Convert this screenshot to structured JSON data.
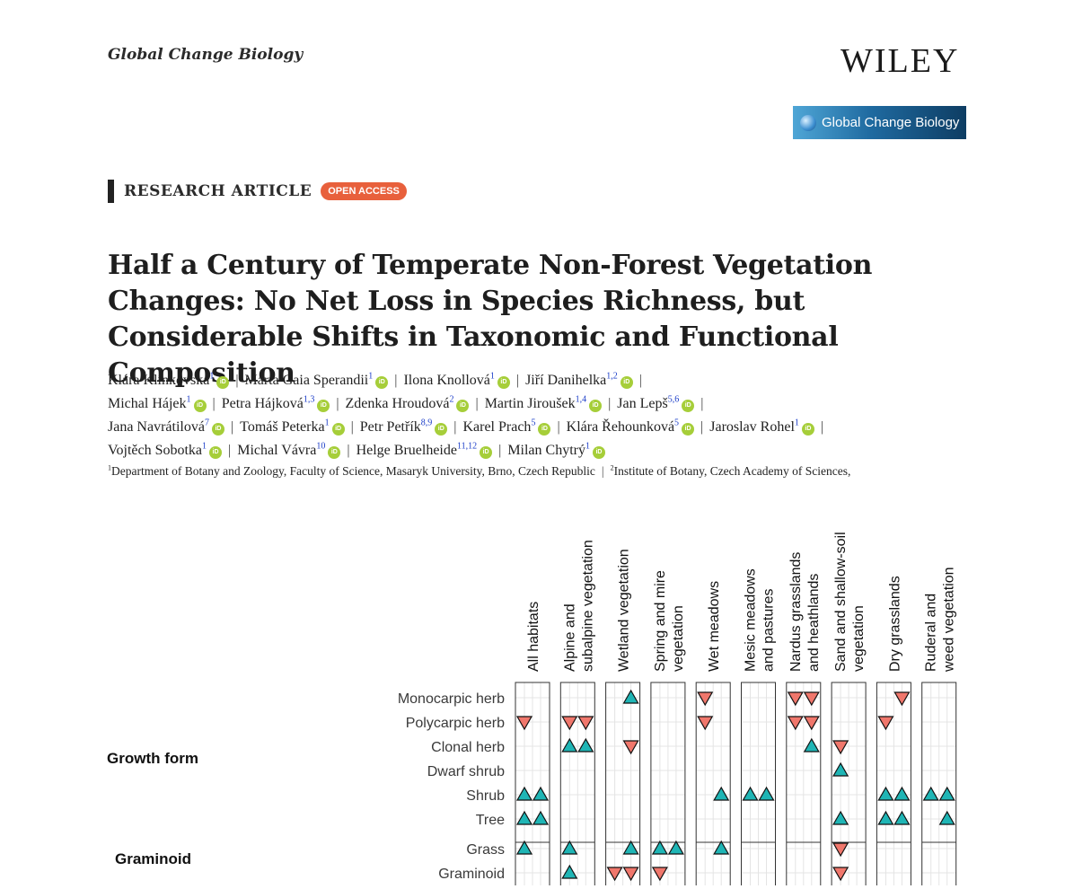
{
  "header": {
    "journal_name": "Global Change Biology",
    "publisher": "WILEY",
    "journal_badge": "Global Change Biology"
  },
  "article": {
    "type": "RESEARCH ARTICLE",
    "access": "OPEN ACCESS",
    "title": "Half a Century of Temperate Non-Forest Vegetation Changes: No Net Loss in Species Richness, but Considerable Shifts in Taxonomic and Functional Composition",
    "orcid_label": "iD",
    "authors": [
      {
        "name": "Klára Klinkovská",
        "aff": "1"
      },
      {
        "name": "Marta Gaia Sperandii",
        "aff": "1"
      },
      {
        "name": "Ilona Knollová",
        "aff": "1"
      },
      {
        "name": "Jiří Danihelka",
        "aff": "1,2"
      },
      {
        "name": "Michal Hájek",
        "aff": "1"
      },
      {
        "name": "Petra Hájková",
        "aff": "1,3"
      },
      {
        "name": "Zdenka Hroudová",
        "aff": "2"
      },
      {
        "name": "Martin Jiroušek",
        "aff": "1,4"
      },
      {
        "name": "Jan Lepš",
        "aff": "5,6"
      },
      {
        "name": "Jana Navrátilová",
        "aff": "7"
      },
      {
        "name": "Tomáš Peterka",
        "aff": "1"
      },
      {
        "name": "Petr Petřík",
        "aff": "8,9"
      },
      {
        "name": "Karel Prach",
        "aff": "5"
      },
      {
        "name": "Klára Řehounková",
        "aff": "5"
      },
      {
        "name": "Jaroslav Rohel",
        "aff": "1"
      },
      {
        "name": "Vojtěch Sobotka",
        "aff": "1"
      },
      {
        "name": "Michal Vávra",
        "aff": "10"
      },
      {
        "name": "Helge Bruelheide",
        "aff": "11,12"
      },
      {
        "name": "Milan Chytrý",
        "aff": "1"
      }
    ],
    "affiliations": [
      {
        "num": "1",
        "text": "Department of Botany and Zoology, Faculty of Science, Masaryk University, Brno, Czech Republic"
      },
      {
        "num": "2",
        "text": "Institute of Botany, Czech Academy of Sciences,"
      }
    ]
  },
  "colors": {
    "increase": "#1fb5b5",
    "decrease": "#f0776c",
    "panel_border": "#333333",
    "grid": "#e4e4e4"
  },
  "chart_data": {
    "type": "table",
    "symbols": {
      "up": "increase",
      "down": "decrease"
    },
    "columns": [
      "All habitats",
      "Alpine and\nsubalpine vegetation",
      "Wetland vegetation",
      "Spring and mire\nvegetation",
      "Wet meadows",
      "Mesic meadows\nand pastures",
      "Nardus grasslands\nand heathlands",
      "Sand and shallow-soil\nvegetation",
      "Dry grasslands",
      "Ruderal and\nweed vegetation"
    ],
    "groups": [
      {
        "label": "Growth form",
        "rows": [
          {
            "label": "Monocarpic herb",
            "cells": [
              null,
              null,
              "up",
              null,
              "down",
              null,
              "down",
              null,
              "down",
              null
            ]
          },
          {
            "label": "Polycarpic herb",
            "cells": [
              "down",
              "down",
              null,
              null,
              "down",
              null,
              "down",
              null,
              "down",
              null
            ]
          },
          {
            "label": "Clonal herb",
            "cells": [
              null,
              "up",
              "down",
              null,
              null,
              null,
              "up",
              "down",
              null,
              null
            ]
          },
          {
            "label": "Dwarf shrub",
            "cells": [
              null,
              null,
              null,
              null,
              null,
              null,
              null,
              "up",
              null,
              null
            ]
          },
          {
            "label": "Shrub",
            "cells": [
              "up",
              null,
              null,
              null,
              "up",
              "up",
              null,
              null,
              "up",
              "up"
            ]
          },
          {
            "label": "Tree",
            "cells": [
              "up",
              null,
              null,
              null,
              null,
              null,
              null,
              "up",
              "up",
              "up"
            ]
          }
        ]
      },
      {
        "label": "Graminoid",
        "rows": [
          {
            "label": "Grass",
            "cells": [
              "up",
              "up",
              "up",
              "up",
              "up",
              null,
              null,
              "down",
              null,
              null
            ]
          },
          {
            "label": "Graminoid",
            "cells": [
              null,
              "up",
              "down",
              "down",
              null,
              null,
              null,
              "down",
              null,
              null
            ]
          }
        ]
      }
    ],
    "symbol_counts": [
      [
        [
          0,
          0
        ],
        [
          0,
          0
        ],
        [
          1,
          0
        ],
        [
          0,
          0
        ],
        [
          0,
          1
        ],
        [
          0,
          0
        ],
        [
          0,
          2
        ],
        [
          0,
          0
        ],
        [
          0,
          1
        ],
        [
          0,
          0
        ]
      ],
      [
        [
          0,
          1
        ],
        [
          0,
          2
        ],
        [
          0,
          0
        ],
        [
          0,
          0
        ],
        [
          0,
          1
        ],
        [
          0,
          0
        ],
        [
          0,
          2
        ],
        [
          0,
          0
        ],
        [
          0,
          1
        ],
        [
          0,
          0
        ]
      ],
      [
        [
          0,
          0
        ],
        [
          2,
          0
        ],
        [
          0,
          1
        ],
        [
          0,
          0
        ],
        [
          0,
          0
        ],
        [
          0,
          0
        ],
        [
          1,
          0
        ],
        [
          0,
          1
        ],
        [
          0,
          0
        ],
        [
          0,
          0
        ]
      ],
      [
        [
          0,
          0
        ],
        [
          0,
          0
        ],
        [
          0,
          0
        ],
        [
          0,
          0
        ],
        [
          0,
          0
        ],
        [
          0,
          0
        ],
        [
          0,
          0
        ],
        [
          1,
          0
        ],
        [
          0,
          0
        ],
        [
          0,
          0
        ]
      ],
      [
        [
          2,
          0
        ],
        [
          0,
          0
        ],
        [
          0,
          0
        ],
        [
          0,
          0
        ],
        [
          1,
          0
        ],
        [
          2,
          0
        ],
        [
          0,
          0
        ],
        [
          0,
          0
        ],
        [
          2,
          0
        ],
        [
          2,
          0
        ]
      ],
      [
        [
          2,
          0
        ],
        [
          0,
          0
        ],
        [
          0,
          0
        ],
        [
          0,
          0
        ],
        [
          0,
          0
        ],
        [
          0,
          0
        ],
        [
          0,
          0
        ],
        [
          1,
          0
        ],
        [
          2,
          0
        ],
        [
          1,
          0
        ]
      ],
      [
        [
          1,
          0
        ],
        [
          1,
          0
        ],
        [
          1,
          0
        ],
        [
          2,
          0
        ],
        [
          1,
          0
        ],
        [
          0,
          0
        ],
        [
          0,
          0
        ],
        [
          0,
          1
        ],
        [
          0,
          0
        ],
        [
          0,
          0
        ]
      ],
      [
        [
          0,
          0
        ],
        [
          1,
          0
        ],
        [
          0,
          2
        ],
        [
          0,
          1
        ],
        [
          0,
          0
        ],
        [
          0,
          0
        ],
        [
          0,
          0
        ],
        [
          0,
          1
        ],
        [
          0,
          0
        ],
        [
          0,
          0
        ]
      ]
    ]
  }
}
